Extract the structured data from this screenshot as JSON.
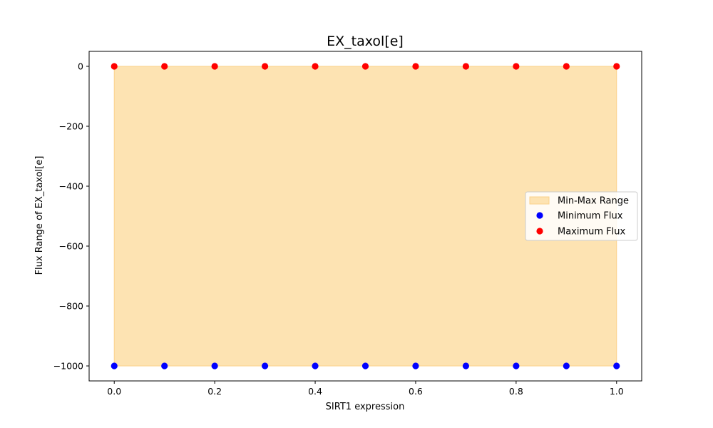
{
  "chart_data": {
    "type": "scatter",
    "title": "EX_taxol[e]",
    "xlabel": "SIRT1 expression",
    "ylabel": "Flux Range of EX_taxol[e]",
    "xlim": [
      -0.05,
      1.05
    ],
    "ylim": [
      -1050,
      50
    ],
    "xticks": [
      0.0,
      0.2,
      0.4,
      0.6,
      0.8,
      1.0
    ],
    "xtick_labels": [
      "0.0",
      "0.2",
      "0.4",
      "0.6",
      "0.8",
      "1.0"
    ],
    "yticks": [
      0,
      -200,
      -400,
      -600,
      -800,
      -1000
    ],
    "ytick_labels": [
      "0",
      "−200",
      "−400",
      "−600",
      "−800",
      "−1000"
    ],
    "x": [
      0.0,
      0.1,
      0.2,
      0.3,
      0.4,
      0.5,
      0.6,
      0.7,
      0.8,
      0.9,
      1.0
    ],
    "fill": {
      "name": "Min-Max Range",
      "color": "#fde3b2",
      "edge_color": "#fbd28a"
    },
    "series": [
      {
        "name": "Minimum Flux",
        "color": "#0000ff",
        "values": [
          -1000,
          -1000,
          -1000,
          -1000,
          -1000,
          -1000,
          -1000,
          -1000,
          -1000,
          -1000,
          -1000
        ]
      },
      {
        "name": "Maximum Flux",
        "color": "#ff0000",
        "values": [
          0,
          0,
          0,
          0,
          0,
          0,
          0,
          0,
          0,
          0,
          0
        ]
      }
    ],
    "legend": {
      "placement": "center-right",
      "entries": [
        "Min-Max Range",
        "Minimum Flux",
        "Maximum Flux"
      ]
    },
    "grid": false
  }
}
